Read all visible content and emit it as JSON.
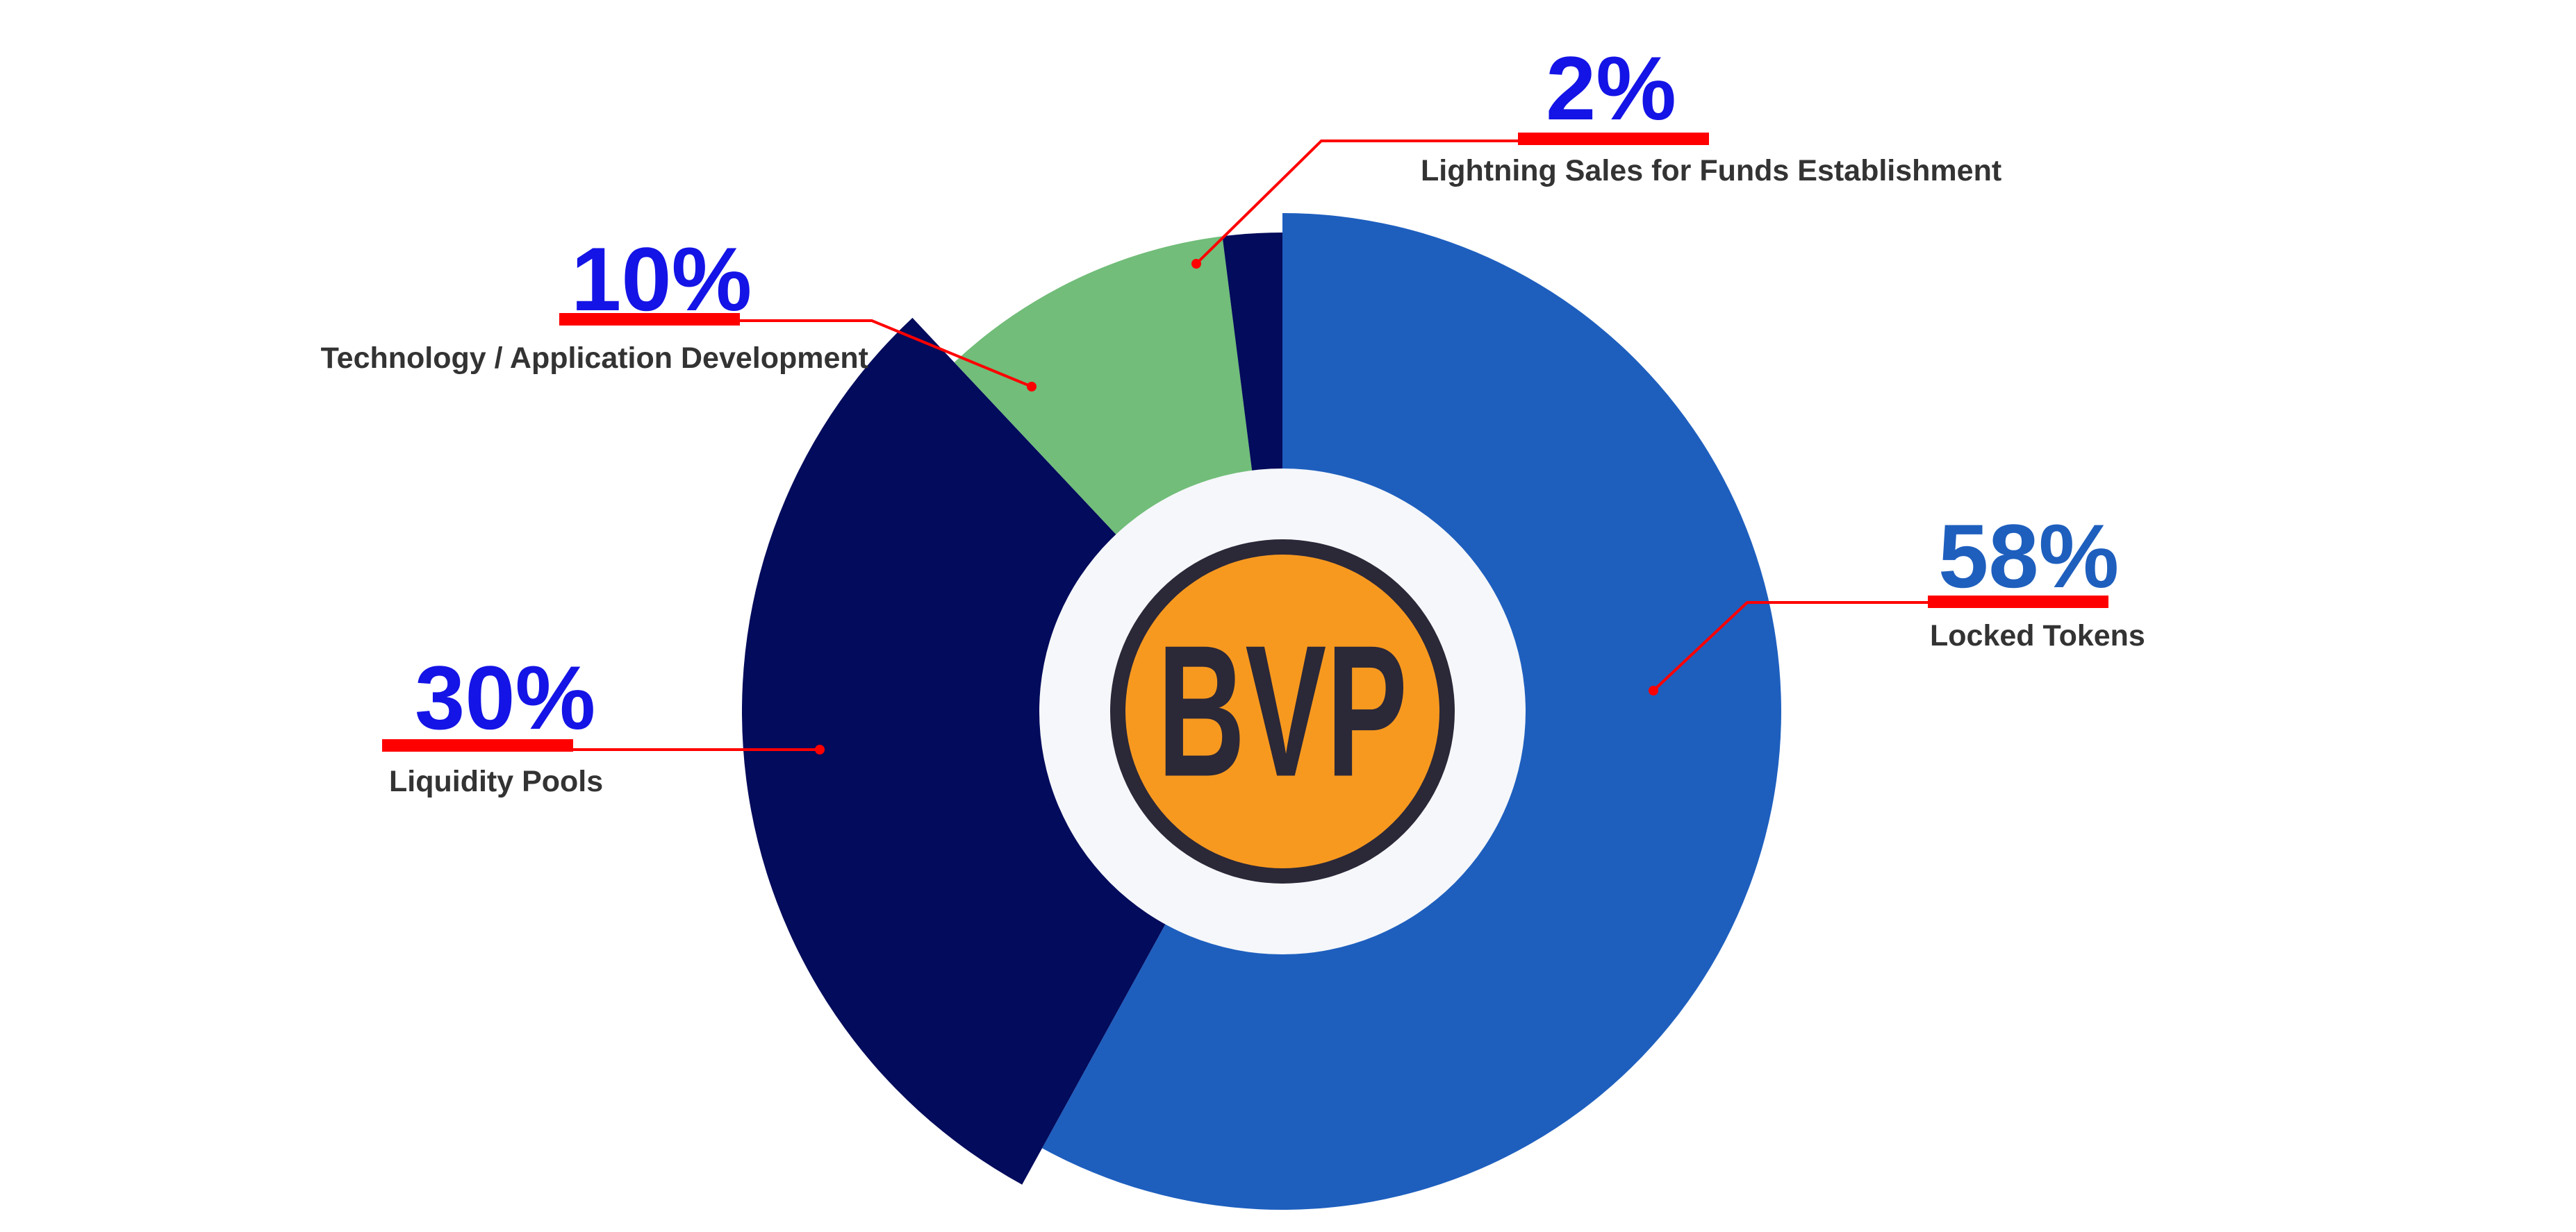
{
  "chart_data": {
    "type": "pie",
    "variant": "donut",
    "slices": [
      {
        "label": "Locked Tokens",
        "value": 58,
        "percent_label": "58%",
        "color": "#1E5FBE",
        "percent_color": "#1E5FBE"
      },
      {
        "label": "Liquidity Pools",
        "value": 30,
        "percent_label": "30%",
        "color": "#030B5C",
        "percent_color": "#1414E6"
      },
      {
        "label": "Technology / Application Development",
        "value": 10,
        "percent_label": "10%",
        "color": "#71BD79",
        "percent_color": "#1414E6"
      },
      {
        "label": "Lightning Sales for Funds Establishment",
        "value": 2,
        "percent_label": "2%",
        "color": "#030B5C",
        "percent_color": "#1414E6"
      }
    ],
    "center_logo": {
      "text": "BVP",
      "ring_color": "#2B2838",
      "fill_color": "#F7991F"
    },
    "leader_color": "#FF0000",
    "center_color": "#F5F7FA"
  }
}
